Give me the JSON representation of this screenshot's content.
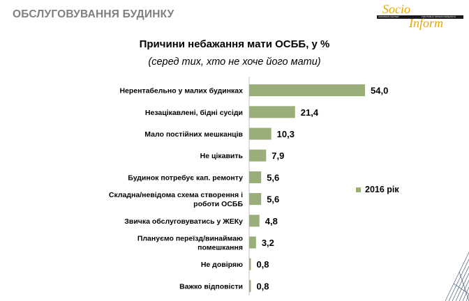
{
  "header": {
    "section_title": "ОБСЛУГОВУВАННЯ БУДИНКУ",
    "logo_word1": "Socio",
    "logo_word2": "Inform",
    "logo_sub1": "UKRAINIAN CENTER",
    "logo_sub2": "FOR PUBLIC OPINION RESEARCH"
  },
  "colors": {
    "bar": "#9aae7a",
    "title_gray": "#7f7f7f",
    "logo": "#e6a800"
  },
  "chart_data": {
    "type": "bar",
    "orientation": "horizontal",
    "title": "Причини небажання мати ОСББ, у %",
    "subtitle": "(серед тих, хто  не хоче його мати)",
    "categories": [
      [
        "Нерентабельно у малих будинках"
      ],
      [
        "Незацікавлені, бідні сусіди"
      ],
      [
        "Мало постійних мешканців"
      ],
      [
        "Не цікавить"
      ],
      [
        "Будинок потребує кап. ремонту"
      ],
      [
        "Складна/невідома схема створення і",
        "роботи ОСББ"
      ],
      [
        "Звичка обслуговуватись у ЖЕКу"
      ],
      [
        "Плануємо переїзд/винаймаю",
        "помешкання"
      ],
      [
        "Не довіряю"
      ],
      [
        "Важко відповісти"
      ]
    ],
    "series": [
      {
        "name": "2016 рік",
        "values": [
          54.0,
          21.4,
          10.3,
          7.9,
          5.6,
          5.6,
          4.8,
          3.2,
          0.8,
          0.8
        ],
        "value_labels": [
          "54,0",
          "21,4",
          "10,3",
          "7,9",
          "5,6",
          "5,6",
          "4,8",
          "3,2",
          "0,8",
          "0,8"
        ]
      }
    ],
    "xlim": [
      0,
      54
    ],
    "legend_position": "right",
    "grid": false
  }
}
